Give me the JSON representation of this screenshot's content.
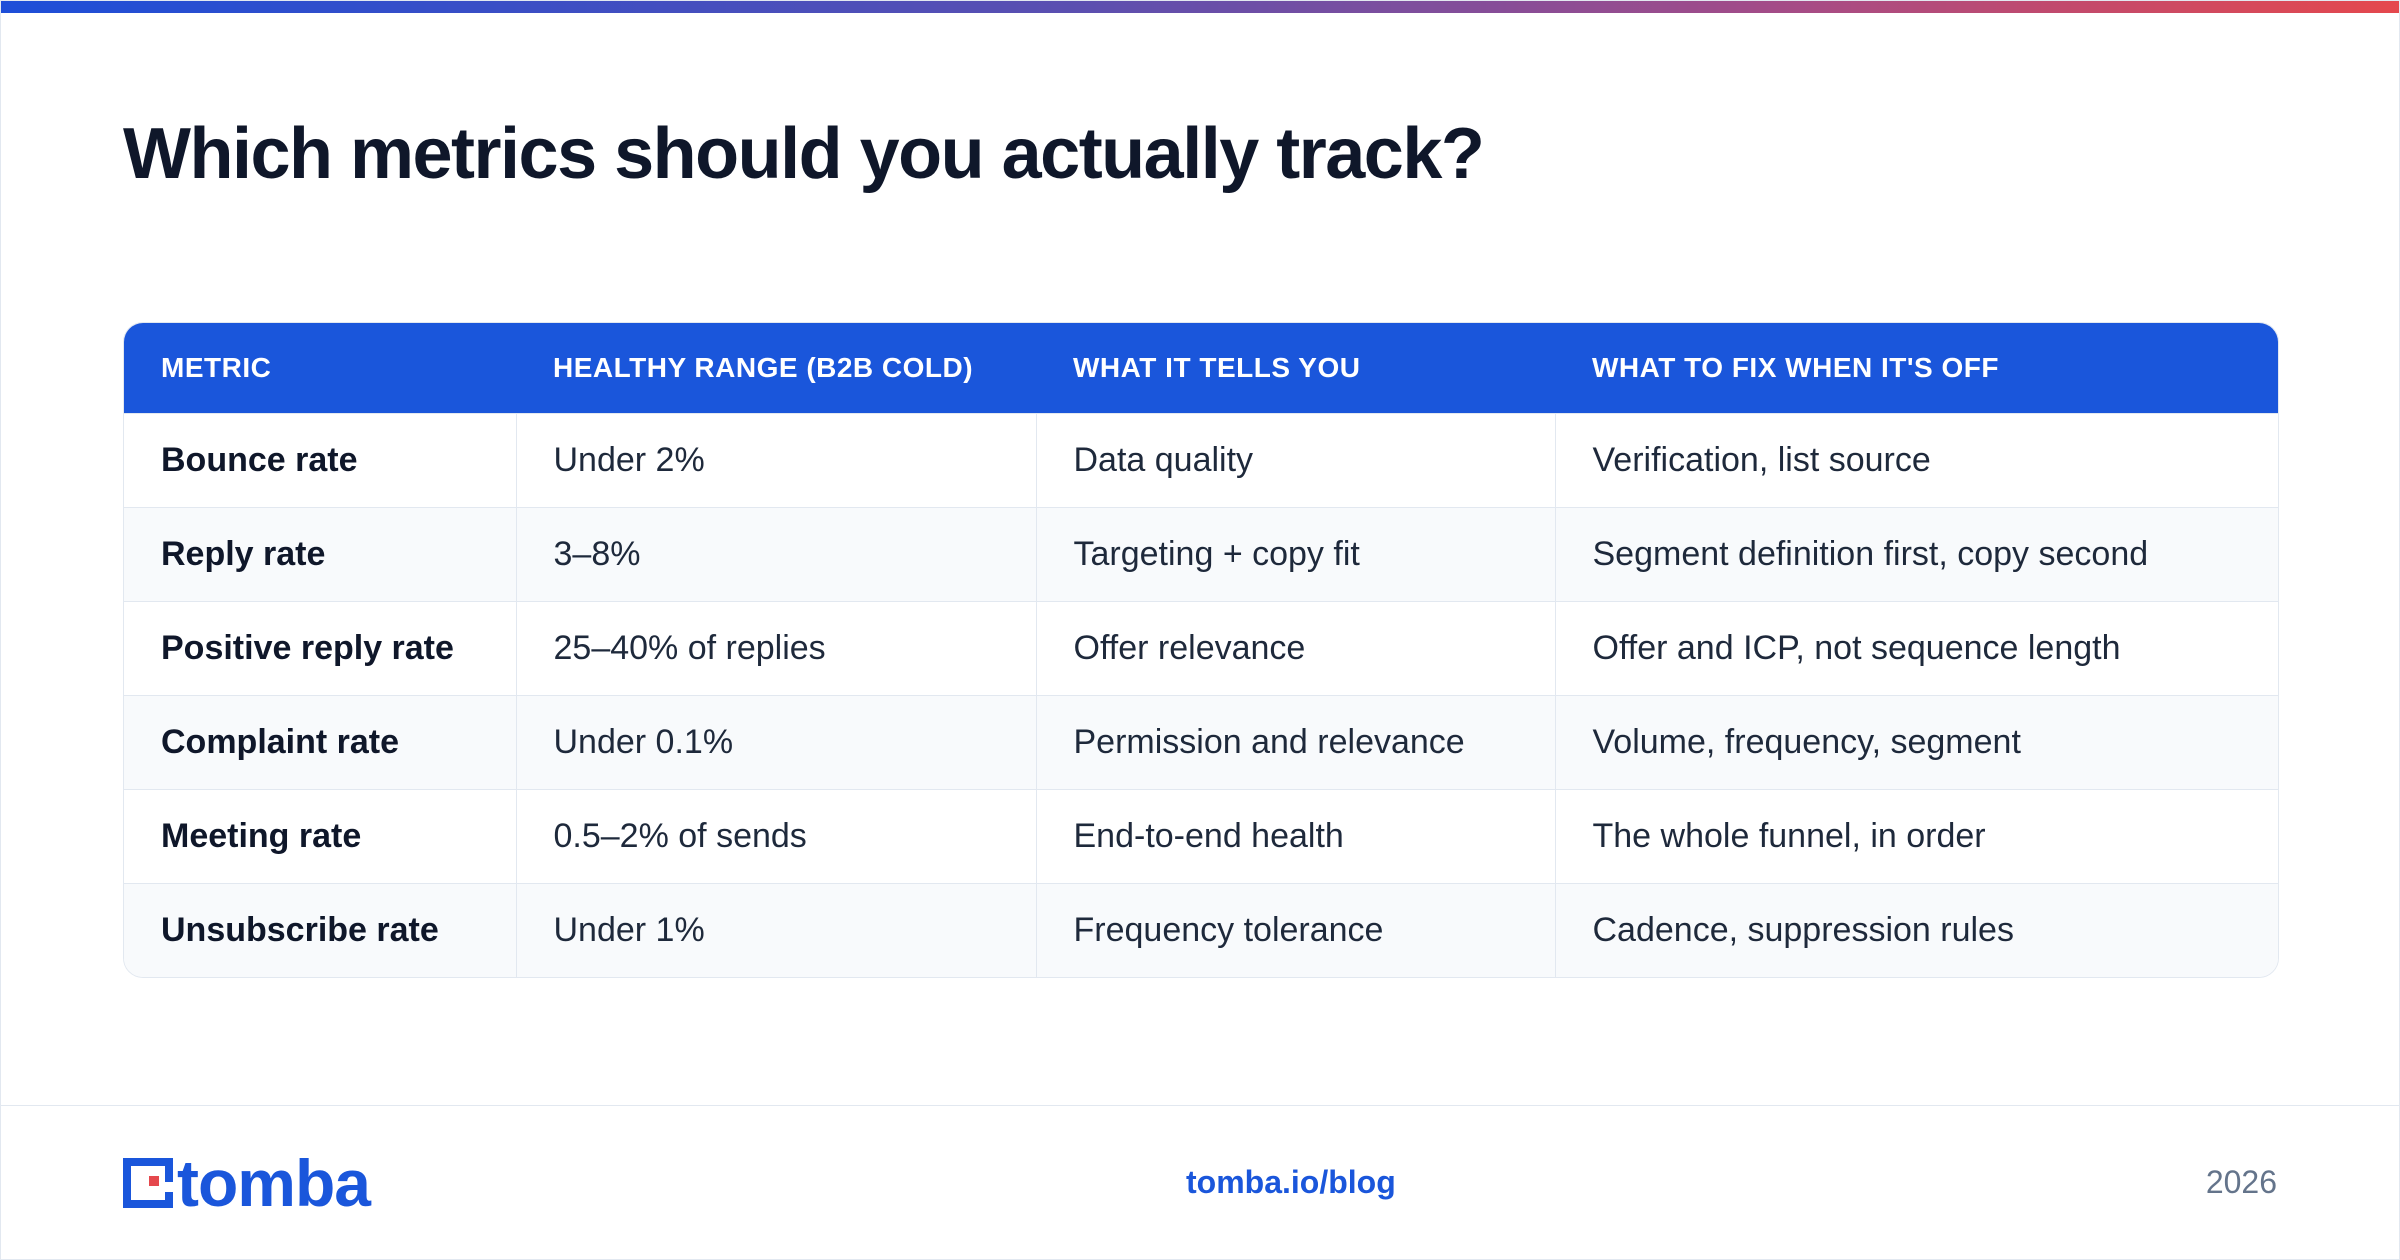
{
  "title": "Which metrics should you actually track?",
  "table": {
    "headers": [
      "METRIC",
      "HEALTHY RANGE (B2B COLD)",
      "WHAT IT TELLS YOU",
      "WHAT TO FIX WHEN IT'S OFF"
    ],
    "rows": [
      [
        "Bounce rate",
        "Under 2%",
        "Data quality",
        "Verification, list source"
      ],
      [
        "Reply rate",
        "3–8%",
        "Targeting + copy fit",
        "Segment definition first, copy second"
      ],
      [
        "Positive reply rate",
        "25–40% of replies",
        "Offer relevance",
        "Offer and ICP, not sequence length"
      ],
      [
        "Complaint rate",
        "Under 0.1%",
        "Permission and relevance",
        "Volume, frequency, segment"
      ],
      [
        "Meeting rate",
        "0.5–2% of sends",
        "End-to-end health",
        "The whole funnel, in order"
      ],
      [
        "Unsubscribe rate",
        "Under 1%",
        "Frequency tolerance",
        "Cadence, suppression rules"
      ]
    ]
  },
  "footer": {
    "logo_text": "tomba",
    "logo_icon": "tomba-logo-icon",
    "link": "tomba.io/blog",
    "year": "2026"
  },
  "colors": {
    "brand_blue": "#1a56db",
    "accent_red": "#e5484d",
    "title": "#0f172a",
    "muted": "#64748b"
  }
}
